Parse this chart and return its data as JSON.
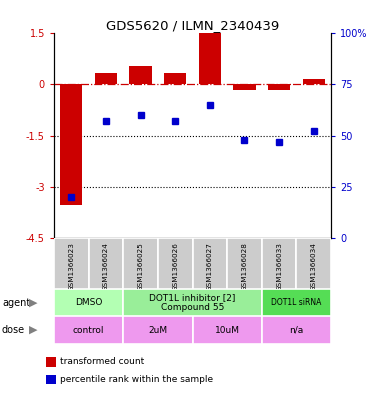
{
  "title": "GDS5620 / ILMN_2340439",
  "samples": [
    "GSM1366023",
    "GSM1366024",
    "GSM1366025",
    "GSM1366026",
    "GSM1366027",
    "GSM1366028",
    "GSM1366033",
    "GSM1366034"
  ],
  "bar_values": [
    -3.55,
    0.35,
    0.55,
    0.35,
    1.5,
    -0.15,
    -0.15,
    0.15
  ],
  "dot_values": [
    20,
    57,
    60,
    57,
    65,
    48,
    47,
    52
  ],
  "ylim_left": [
    -4.5,
    1.5
  ],
  "ylim_right": [
    0,
    100
  ],
  "yticks_left": [
    -4.5,
    -3.0,
    -1.5,
    0.0,
    1.5
  ],
  "yticks_right": [
    0,
    25,
    50,
    75,
    100
  ],
  "ytick_labels_left": [
    "-4.5",
    "-3",
    "-1.5",
    "0",
    "1.5"
  ],
  "ytick_labels_right": [
    "0",
    "25",
    "50",
    "75",
    "100%"
  ],
  "hline_y": 0.0,
  "dotted_lines": [
    -1.5,
    -3.0
  ],
  "bar_color": "#cc0000",
  "dot_color": "#0000cc",
  "agent_groups": [
    {
      "label": "DMSO",
      "start": 0,
      "end": 2,
      "color": "#b3ffb3"
    },
    {
      "label": "DOT1L inhibitor [2]\nCompound 55",
      "start": 2,
      "end": 6,
      "color": "#99ee99"
    },
    {
      "label": "DOT1L siRNA",
      "start": 6,
      "end": 8,
      "color": "#55dd55"
    }
  ],
  "dose_groups": [
    {
      "label": "control",
      "start": 0,
      "end": 2,
      "color": "#ee99ee"
    },
    {
      "label": "2uM",
      "start": 2,
      "end": 4,
      "color": "#ee99ee"
    },
    {
      "label": "10uM",
      "start": 4,
      "end": 6,
      "color": "#ee99ee"
    },
    {
      "label": "n/a",
      "start": 6,
      "end": 8,
      "color": "#ee99ee"
    }
  ],
  "legend_items": [
    {
      "label": "transformed count",
      "color": "#cc0000"
    },
    {
      "label": "percentile rank within the sample",
      "color": "#0000cc"
    }
  ],
  "agent_label": "agent",
  "dose_label": "dose",
  "background_color": "#ffffff",
  "sample_bg_color": "#cccccc"
}
